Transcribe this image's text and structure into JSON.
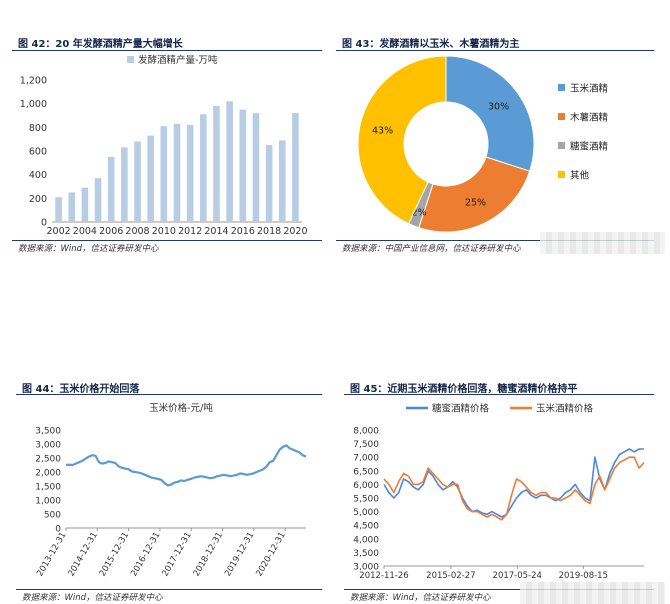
{
  "panels": {
    "p42": {
      "title": "图 42：20 年发酵酒精产量大幅增长",
      "source": "数据来源：Wind，信达证券研发中心"
    },
    "p43": {
      "title": "图 43：发酵酒精以玉米、木薯酒精为主",
      "source": "数据来源：中国产业信息网，信达证券研发中心"
    },
    "p44": {
      "title": "图 44：玉米价格开始回落",
      "source": "数据来源：Wind，信达证券研发中心"
    },
    "p45": {
      "title": "图 45：近期玉米酒精价格回落，糖蜜酒精价格持平",
      "source": "数据来源：Wind，信达证券研发中心"
    }
  },
  "chart_data": [
    {
      "id": "p42",
      "type": "bar",
      "series": [
        {
          "name": "发酵酒精产量-万吨",
          "color": "#b8cce4"
        }
      ],
      "x": [
        2002,
        2003,
        2004,
        2005,
        2006,
        2007,
        2008,
        2009,
        2010,
        2011,
        2012,
        2013,
        2014,
        2015,
        2016,
        2017,
        2018,
        2019,
        2020
      ],
      "values": [
        210,
        250,
        290,
        370,
        550,
        630,
        680,
        730,
        810,
        830,
        820,
        910,
        980,
        1020,
        950,
        920,
        650,
        690,
        920
      ],
      "xticks": [
        "2002",
        "2004",
        "2006",
        "2008",
        "2010",
        "2012",
        "2014",
        "2016",
        "2018",
        "2020"
      ],
      "yticks": [
        "0",
        "200",
        "400",
        "600",
        "800",
        "1,000",
        "1,200"
      ],
      "ylim": [
        0,
        1200
      ]
    },
    {
      "id": "p43",
      "type": "pie",
      "donut": true,
      "slices": [
        {
          "name": "玉米酒精",
          "value": 30,
          "label": "30%",
          "color": "#5b9bd5"
        },
        {
          "name": "木薯酒精",
          "value": 25,
          "label": "25%",
          "color": "#ed7d31"
        },
        {
          "name": "糖蜜酒精",
          "value": 2,
          "label": "2%",
          "color": "#a5a5a5"
        },
        {
          "name": "其他",
          "value": 43,
          "label": "43%",
          "color": "#ffc000"
        }
      ]
    },
    {
      "id": "p44",
      "type": "line",
      "series": [
        {
          "name": "玉米价格-元/吨",
          "color": "#5b9bd5",
          "values": [
            2250,
            2260,
            2250,
            2300,
            2350,
            2400,
            2480,
            2550,
            2600,
            2580,
            2350,
            2300,
            2320,
            2380,
            2350,
            2320,
            2200,
            2150,
            2120,
            2100,
            2020,
            2000,
            1980,
            1950,
            1900,
            1850,
            1800,
            1780,
            1750,
            1720,
            1600,
            1520,
            1550,
            1620,
            1650,
            1700,
            1680,
            1720,
            1750,
            1800,
            1820,
            1850,
            1830,
            1800,
            1780,
            1800,
            1850,
            1870,
            1900,
            1880,
            1850,
            1870,
            1900,
            1950,
            1930,
            1900,
            1920,
            1950,
            2000,
            2050,
            2100,
            2200,
            2350,
            2400,
            2600,
            2800,
            2900,
            2950,
            2850,
            2800,
            2750,
            2700,
            2600,
            2550
          ]
        }
      ],
      "x_start": "2013-12-31",
      "x_end": "2021-08-31",
      "xticks": [
        "2013-12-31",
        "2014-12-31",
        "2015-12-31",
        "2016-12-31",
        "2017-12-31",
        "2018-12-31",
        "2019-12-31",
        "2020-12-31"
      ],
      "yticks": [
        "0",
        "500",
        "1,000",
        "1,500",
        "2,000",
        "2,500",
        "3,000",
        "3,500"
      ],
      "ylim": [
        0,
        3500
      ]
    },
    {
      "id": "p45",
      "type": "line",
      "series": [
        {
          "name": "糖蜜酒精价格",
          "color": "#4a86e8",
          "values": [
            6000,
            5700,
            5500,
            5700,
            6200,
            6100,
            5900,
            5800,
            6000,
            6500,
            6300,
            6000,
            5800,
            5900,
            6100,
            5900,
            5500,
            5200,
            5000,
            5050,
            4950,
            4900,
            5000,
            4900,
            4800,
            4900,
            5200,
            5500,
            5700,
            5800,
            5600,
            5500,
            5600,
            5600,
            5500,
            5400,
            5500,
            5700,
            5800,
            6000,
            5700,
            5500,
            5400,
            7000,
            6200,
            5800,
            6400,
            6800,
            7100,
            7200,
            7300,
            7200,
            7300,
            7300
          ]
        },
        {
          "name": "玉米酒精价格",
          "color": "#ed7d31",
          "values": [
            6200,
            6000,
            5700,
            6100,
            6400,
            6300,
            6000,
            6000,
            6100,
            6600,
            6400,
            6200,
            6000,
            5900,
            6000,
            6000,
            5400,
            5100,
            5000,
            5000,
            4900,
            4800,
            4900,
            4800,
            4700,
            4900,
            5600,
            6200,
            6100,
            5900,
            5700,
            5600,
            5700,
            5700,
            5500,
            5500,
            5400,
            5500,
            5600,
            5800,
            5600,
            5400,
            5300,
            6000,
            6300,
            5800,
            6200,
            6600,
            6800,
            6900,
            7000,
            7000,
            6600,
            6800
          ]
        }
      ],
      "x_start": "2012-11-26",
      "x_end": "2021-08-31",
      "xticks": [
        "2012-11-26",
        "2015-02-27",
        "2017-05-24",
        "2019-08-15"
      ],
      "yticks": [
        "3,000",
        "3,500",
        "4,000",
        "4,500",
        "5,000",
        "5,500",
        "6,000",
        "6,500",
        "7,000",
        "7,500",
        "8,000"
      ],
      "ylim": [
        3000,
        8000
      ]
    }
  ]
}
